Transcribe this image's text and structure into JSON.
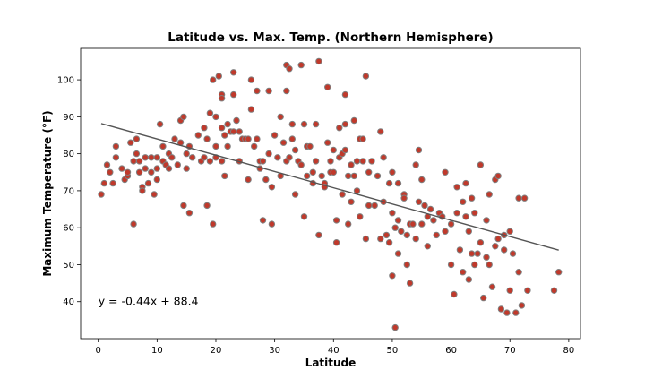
{
  "chart_data": {
    "type": "scatter",
    "title": "Latitude vs. Max. Temp. (Northern Hemisphere)",
    "xlabel": "Latitude",
    "ylabel": "Maximum Temperature (°F)",
    "xlim": [
      -3,
      82
    ],
    "ylim": [
      30,
      108.5
    ],
    "xticks": [
      0,
      10,
      20,
      30,
      40,
      50,
      60,
      70,
      80
    ],
    "yticks": [
      40,
      50,
      60,
      70,
      80,
      90,
      100
    ],
    "grid": false,
    "marker_face_color": "#c0392b",
    "marker_edge_color": "#808080",
    "regression": {
      "slope": -0.44,
      "intercept": 88.4,
      "x_range": [
        0.5,
        78.3
      ],
      "color": "#555555"
    },
    "annotation": {
      "text": "y = -0.44x + 88.4",
      "x": 0,
      "y": 40
    },
    "points": [
      [
        0.5,
        69
      ],
      [
        1,
        72
      ],
      [
        1.5,
        77
      ],
      [
        2,
        75
      ],
      [
        2.5,
        72
      ],
      [
        3,
        79
      ],
      [
        3,
        82
      ],
      [
        4,
        76
      ],
      [
        4.5,
        73
      ],
      [
        5,
        74
      ],
      [
        5,
        75
      ],
      [
        5.5,
        83
      ],
      [
        6,
        78
      ],
      [
        6,
        61
      ],
      [
        6.5,
        84
      ],
      [
        6.5,
        80
      ],
      [
        7,
        78
      ],
      [
        7,
        75
      ],
      [
        7.5,
        71
      ],
      [
        7.5,
        70
      ],
      [
        8,
        79
      ],
      [
        8,
        76
      ],
      [
        8.5,
        72
      ],
      [
        9,
        79
      ],
      [
        9,
        75
      ],
      [
        9.5,
        69
      ],
      [
        10,
        79
      ],
      [
        10,
        76
      ],
      [
        10,
        73
      ],
      [
        10.5,
        88
      ],
      [
        11,
        82
      ],
      [
        11,
        78
      ],
      [
        11.5,
        77
      ],
      [
        12,
        80
      ],
      [
        12,
        76
      ],
      [
        12.5,
        79
      ],
      [
        13,
        84
      ],
      [
        13.5,
        77
      ],
      [
        14,
        89
      ],
      [
        14,
        83
      ],
      [
        14.5,
        90
      ],
      [
        14.5,
        66
      ],
      [
        15,
        80
      ],
      [
        15,
        76
      ],
      [
        15.5,
        82
      ],
      [
        15.5,
        64
      ],
      [
        16,
        79
      ],
      [
        17,
        85
      ],
      [
        17.5,
        78
      ],
      [
        18,
        79
      ],
      [
        18,
        87
      ],
      [
        18.5,
        84
      ],
      [
        18.5,
        66
      ],
      [
        19,
        91
      ],
      [
        19,
        78
      ],
      [
        19.5,
        100
      ],
      [
        19.5,
        61
      ],
      [
        20,
        90
      ],
      [
        20,
        82
      ],
      [
        20,
        79
      ],
      [
        20.5,
        101
      ],
      [
        21,
        96
      ],
      [
        21,
        95
      ],
      [
        21,
        87
      ],
      [
        21,
        78
      ],
      [
        21.5,
        85
      ],
      [
        21.5,
        74
      ],
      [
        22,
        88
      ],
      [
        22,
        82
      ],
      [
        22.5,
        86
      ],
      [
        23,
        102
      ],
      [
        23,
        86
      ],
      [
        23,
        96
      ],
      [
        23.5,
        89
      ],
      [
        24,
        86
      ],
      [
        24,
        78
      ],
      [
        24.5,
        84
      ],
      [
        25,
        84
      ],
      [
        25.5,
        84
      ],
      [
        25.5,
        73
      ],
      [
        26,
        100
      ],
      [
        26,
        92
      ],
      [
        26.5,
        82
      ],
      [
        27,
        97
      ],
      [
        27,
        84
      ],
      [
        27.5,
        76
      ],
      [
        27.5,
        78
      ],
      [
        28,
        78
      ],
      [
        28,
        62
      ],
      [
        28.5,
        73
      ],
      [
        29,
        97
      ],
      [
        29,
        80
      ],
      [
        29.5,
        71
      ],
      [
        29.5,
        61
      ],
      [
        30,
        85
      ],
      [
        30.5,
        79
      ],
      [
        31,
        90
      ],
      [
        31,
        74
      ],
      [
        31.5,
        83
      ],
      [
        32,
        104
      ],
      [
        32,
        78
      ],
      [
        32,
        97
      ],
      [
        32.5,
        103
      ],
      [
        32.5,
        79
      ],
      [
        33,
        88
      ],
      [
        33,
        84
      ],
      [
        33.5,
        81
      ],
      [
        33.5,
        69
      ],
      [
        34,
        78
      ],
      [
        34.5,
        104
      ],
      [
        34.5,
        77
      ],
      [
        35,
        88
      ],
      [
        35,
        63
      ],
      [
        35.5,
        82
      ],
      [
        35.5,
        74
      ],
      [
        36,
        82
      ],
      [
        36.5,
        75
      ],
      [
        36.5,
        72
      ],
      [
        37,
        88
      ],
      [
        37,
        78
      ],
      [
        37.5,
        105
      ],
      [
        37.5,
        58
      ],
      [
        38,
        74
      ],
      [
        38.5,
        72
      ],
      [
        38.5,
        71
      ],
      [
        39,
        98
      ],
      [
        39,
        83
      ],
      [
        39.5,
        78
      ],
      [
        39.5,
        75
      ],
      [
        40,
        81
      ],
      [
        40,
        75
      ],
      [
        40.5,
        62
      ],
      [
        40.5,
        56
      ],
      [
        41,
        87
      ],
      [
        41,
        79
      ],
      [
        41.5,
        80
      ],
      [
        41.5,
        69
      ],
      [
        42,
        88
      ],
      [
        42,
        96
      ],
      [
        42,
        81
      ],
      [
        42.5,
        74
      ],
      [
        42.5,
        61
      ],
      [
        43,
        77
      ],
      [
        43,
        67
      ],
      [
        43.5,
        89
      ],
      [
        43.5,
        74
      ],
      [
        44,
        78
      ],
      [
        44,
        70
      ],
      [
        44.5,
        84
      ],
      [
        44.5,
        63
      ],
      [
        45,
        84
      ],
      [
        45,
        78
      ],
      [
        45.5,
        101
      ],
      [
        45.5,
        57
      ],
      [
        46,
        75
      ],
      [
        46,
        66
      ],
      [
        46.5,
        78
      ],
      [
        47,
        66
      ],
      [
        47.5,
        74
      ],
      [
        48,
        86
      ],
      [
        48,
        57
      ],
      [
        48.5,
        79
      ],
      [
        48.5,
        67
      ],
      [
        49,
        58
      ],
      [
        49.5,
        72
      ],
      [
        49.5,
        56
      ],
      [
        50,
        75
      ],
      [
        50,
        64
      ],
      [
        50,
        47
      ],
      [
        50.5,
        60
      ],
      [
        50.5,
        33
      ],
      [
        51,
        72
      ],
      [
        51,
        62
      ],
      [
        51,
        53
      ],
      [
        51.5,
        59
      ],
      [
        52,
        69
      ],
      [
        52,
        68
      ],
      [
        52.5,
        58
      ],
      [
        52.5,
        50
      ],
      [
        53,
        45
      ],
      [
        53,
        61
      ],
      [
        53.5,
        61
      ],
      [
        54,
        77
      ],
      [
        54,
        57
      ],
      [
        54.5,
        81
      ],
      [
        54.5,
        67
      ],
      [
        55,
        73
      ],
      [
        55,
        61
      ],
      [
        55.5,
        66
      ],
      [
        56,
        63
      ],
      [
        56,
        55
      ],
      [
        56.5,
        65
      ],
      [
        57,
        62
      ],
      [
        57.5,
        58
      ],
      [
        58,
        64
      ],
      [
        58.5,
        63
      ],
      [
        59,
        75
      ],
      [
        59,
        59
      ],
      [
        60,
        61
      ],
      [
        60,
        50
      ],
      [
        60.5,
        42
      ],
      [
        61,
        71
      ],
      [
        61,
        64
      ],
      [
        61.5,
        54
      ],
      [
        62,
        67
      ],
      [
        62,
        48
      ],
      [
        62.5,
        72
      ],
      [
        62.5,
        63
      ],
      [
        63,
        59
      ],
      [
        63,
        46
      ],
      [
        63.5,
        68
      ],
      [
        63.5,
        53
      ],
      [
        64,
        64
      ],
      [
        64,
        50
      ],
      [
        64.5,
        53
      ],
      [
        65,
        77
      ],
      [
        65,
        56
      ],
      [
        65.5,
        41
      ],
      [
        66,
        62
      ],
      [
        66,
        52
      ],
      [
        66.5,
        69
      ],
      [
        66.5,
        50
      ],
      [
        67,
        44
      ],
      [
        67.5,
        73
      ],
      [
        67.5,
        55
      ],
      [
        68,
        74
      ],
      [
        68,
        57
      ],
      [
        68.5,
        38
      ],
      [
        69,
        58
      ],
      [
        69,
        54
      ],
      [
        69.5,
        37
      ],
      [
        70,
        59
      ],
      [
        70,
        43
      ],
      [
        70.5,
        53
      ],
      [
        71,
        37
      ],
      [
        71.5,
        68
      ],
      [
        71.5,
        48
      ],
      [
        72,
        39
      ],
      [
        72.5,
        68
      ],
      [
        73,
        43
      ],
      [
        77.5,
        43
      ],
      [
        78.3,
        48
      ]
    ]
  }
}
